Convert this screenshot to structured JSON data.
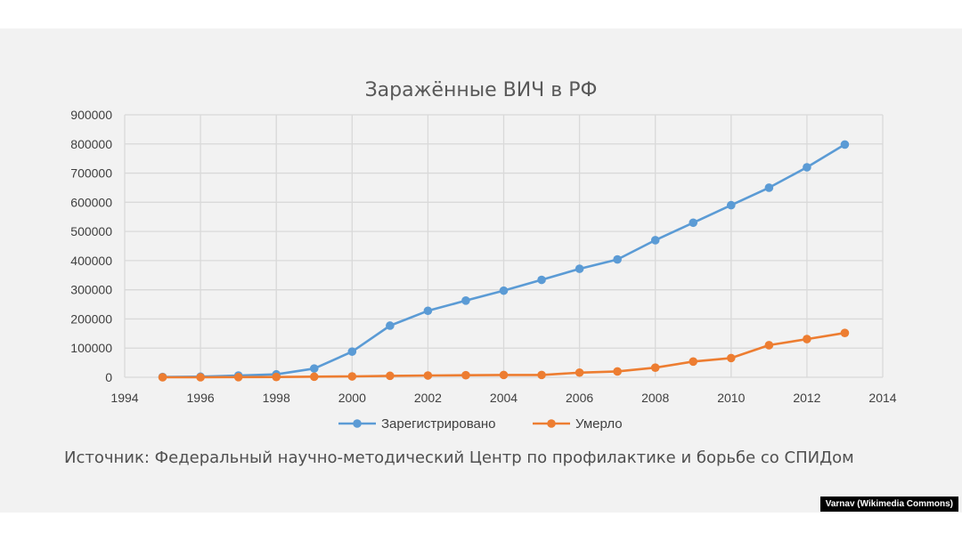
{
  "chart_data": {
    "type": "line",
    "title": "Заражённые ВИЧ в РФ",
    "xlabel": "",
    "ylabel": "",
    "xlim": [
      1994,
      2014
    ],
    "ylim": [
      0,
      900000
    ],
    "x_ticks": [
      "1994",
      "1996",
      "1998",
      "2000",
      "2002",
      "2004",
      "2006",
      "2008",
      "2010",
      "2012",
      "2014"
    ],
    "y_ticks": [
      "0",
      "100000",
      "200000",
      "300000",
      "400000",
      "500000",
      "600000",
      "700000",
      "800000",
      "900000"
    ],
    "grid": true,
    "legend_position": "bottom",
    "series": [
      {
        "name": "Зарегистрировано",
        "color": "#5b9bd5",
        "x": [
          1995,
          1996,
          1997,
          1998,
          1999,
          2000,
          2001,
          2002,
          2003,
          2004,
          2005,
          2006,
          2007,
          2008,
          2009,
          2010,
          2011,
          2012,
          2013
        ],
        "y": [
          1000,
          2000,
          6000,
          10000,
          30000,
          88000,
          177000,
          228000,
          263000,
          297000,
          334000,
          372000,
          404000,
          470000,
          530000,
          590000,
          650000,
          720000,
          798000
        ]
      },
      {
        "name": "Умерло",
        "color": "#ed7d31",
        "x": [
          1995,
          1996,
          1997,
          1998,
          1999,
          2000,
          2001,
          2002,
          2003,
          2004,
          2005,
          2006,
          2007,
          2008,
          2009,
          2010,
          2011,
          2012,
          2013
        ],
        "y": [
          0,
          0,
          500,
          1000,
          2000,
          3000,
          5000,
          6000,
          7000,
          8000,
          8000,
          16000,
          20000,
          33000,
          54000,
          66000,
          110000,
          131000,
          152000
        ]
      }
    ]
  },
  "source_text": "Источник: Федеральный научно-методический Центр по профилактике и борьбе со СПИДом",
  "credit_text": "Varnav (Wikimedia Commons)"
}
